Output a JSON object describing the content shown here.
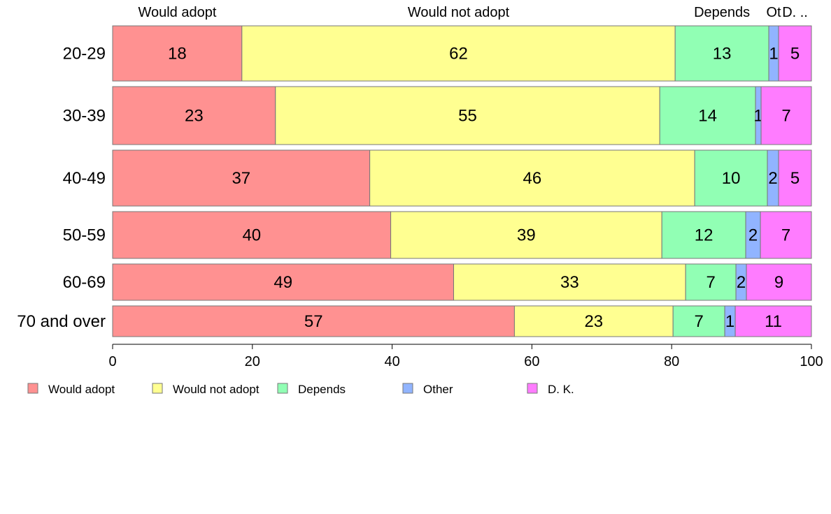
{
  "chart_data": {
    "type": "bar",
    "orientation": "horizontal",
    "stacked": true,
    "categories": [
      "20-29",
      "30-39",
      "40-49",
      "50-59",
      "60-69",
      "70 and over"
    ],
    "series": [
      {
        "name": "Would adopt",
        "color": "#ff9191",
        "values": [
          18.5,
          23.3,
          36.8,
          39.8,
          48.8,
          57.5
        ]
      },
      {
        "name": "Would not adopt",
        "color": "#ffff91",
        "values": [
          62,
          55,
          46.5,
          38.8,
          33.2,
          22.7
        ]
      },
      {
        "name": "Depends",
        "color": "#91ffb4",
        "values": [
          13.4,
          13.7,
          10.4,
          12.0,
          7.2,
          7.4
        ]
      },
      {
        "name": "Other",
        "color": "#91b4ff",
        "values": [
          1.4,
          0.8,
          1.6,
          2.1,
          1.5,
          1.5
        ]
      },
      {
        "name": "D. K.",
        "color": "#ff7cff",
        "values": [
          4.7,
          7.2,
          4.7,
          7.3,
          9.3,
          10.9
        ]
      }
    ],
    "data_labels": [
      [
        "18",
        "62",
        "13",
        "1",
        "5"
      ],
      [
        "23",
        "55",
        "14",
        "1",
        "7"
      ],
      [
        "37",
        "46",
        "10",
        "2",
        "5"
      ],
      [
        "40",
        "39",
        "12",
        "2",
        "7"
      ],
      [
        "49",
        "33",
        "7",
        "2",
        "9"
      ],
      [
        "57",
        "23",
        "7",
        "1",
        "11"
      ]
    ],
    "top_labels": [
      "Would adopt",
      "Would not adopt",
      "Depends",
      "Ot",
      "D. .."
    ],
    "xlim": [
      0,
      100
    ],
    "xticks": [
      "0",
      "20",
      "40",
      "60",
      "80",
      "100"
    ],
    "xlabel": "",
    "ylabel": "",
    "title": "",
    "grid": false,
    "legend_position": "bottom"
  }
}
